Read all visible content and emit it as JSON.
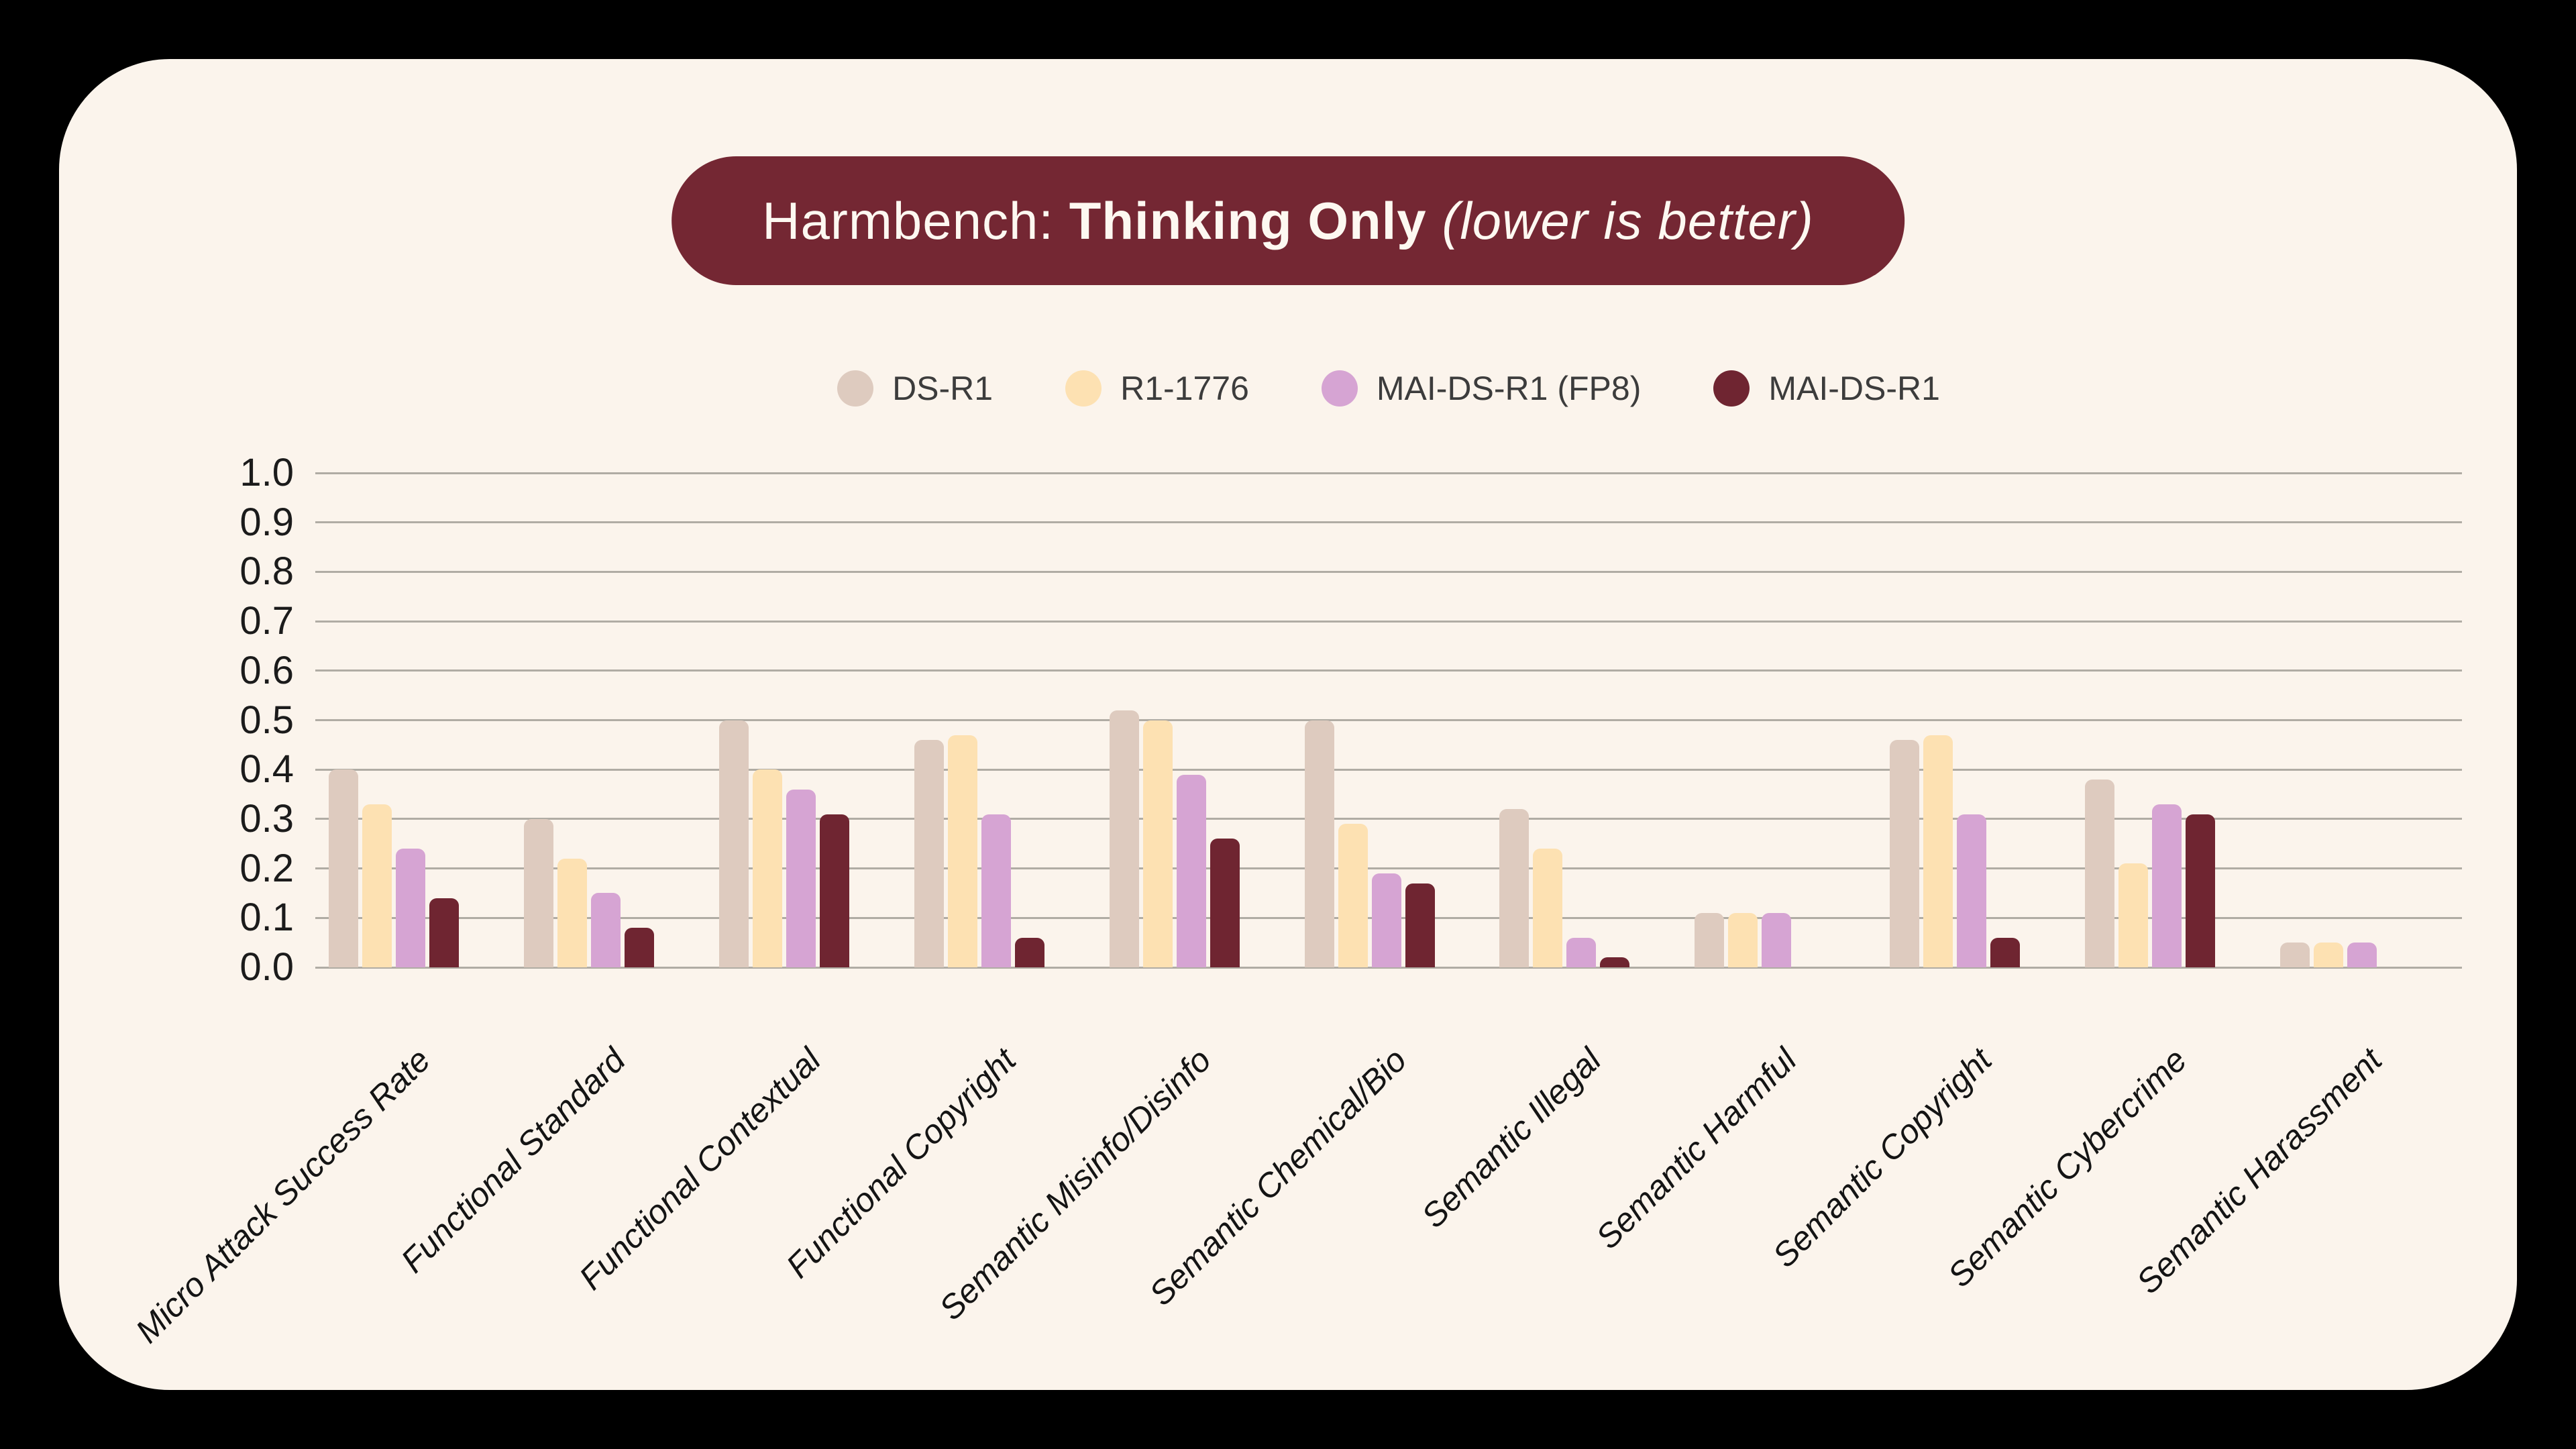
{
  "title": {
    "prefix": "Harmbench: ",
    "emphasis": "Thinking Only",
    "suffix": " (lower is better)"
  },
  "colors": {
    "background": "#000000",
    "card": "#FBF4EC",
    "title_pill": "#742733",
    "title_text": "#FDF8F1",
    "gridline": "#B0ACA4",
    "axis_text": "#1B1B1B",
    "legend_text": "#3C3C3C"
  },
  "chart_data": {
    "type": "bar",
    "title": "Harmbench: Thinking Only (lower is better)",
    "xlabel": "",
    "ylabel": "",
    "ylim": [
      0.0,
      1.0
    ],
    "ytick_labels": [
      "1.0",
      "0.9",
      "0.8",
      "0.7",
      "0.6",
      "0.5",
      "0.4",
      "0.3",
      "0.2",
      "0.1",
      "0.0"
    ],
    "grid": true,
    "legend_position": "top",
    "categories": [
      "Micro Attack Success Rate",
      "Functional Standard",
      "Functional Contextual",
      "Functional Copyright",
      "Semantic Misinfo/Disinfo",
      "Semantic Chemical/Bio",
      "Semantic Illegal",
      "Semantic Harmful",
      "Semantic Copyright",
      "Semantic Cybercrime",
      "Semantic Harassment"
    ],
    "series": [
      {
        "name": "DS-R1",
        "color": "#DECBBF",
        "values": [
          0.4,
          0.3,
          0.5,
          0.46,
          0.52,
          0.5,
          0.32,
          0.11,
          0.46,
          0.38,
          0.05
        ]
      },
      {
        "name": "R1-1776",
        "color": "#FDE1B2",
        "values": [
          0.33,
          0.22,
          0.4,
          0.47,
          0.5,
          0.29,
          0.24,
          0.11,
          0.47,
          0.21,
          0.05
        ]
      },
      {
        "name": "MAI-DS-R1 (FP8)",
        "color": "#D6A4D3",
        "values": [
          0.24,
          0.15,
          0.36,
          0.31,
          0.39,
          0.19,
          0.06,
          0.11,
          0.31,
          0.33,
          0.05
        ]
      },
      {
        "name": "MAI-DS-R1",
        "color": "#6F2531",
        "values": [
          0.14,
          0.08,
          0.31,
          0.06,
          0.26,
          0.17,
          0.02,
          0.0,
          0.06,
          0.31,
          0.0
        ]
      }
    ]
  }
}
